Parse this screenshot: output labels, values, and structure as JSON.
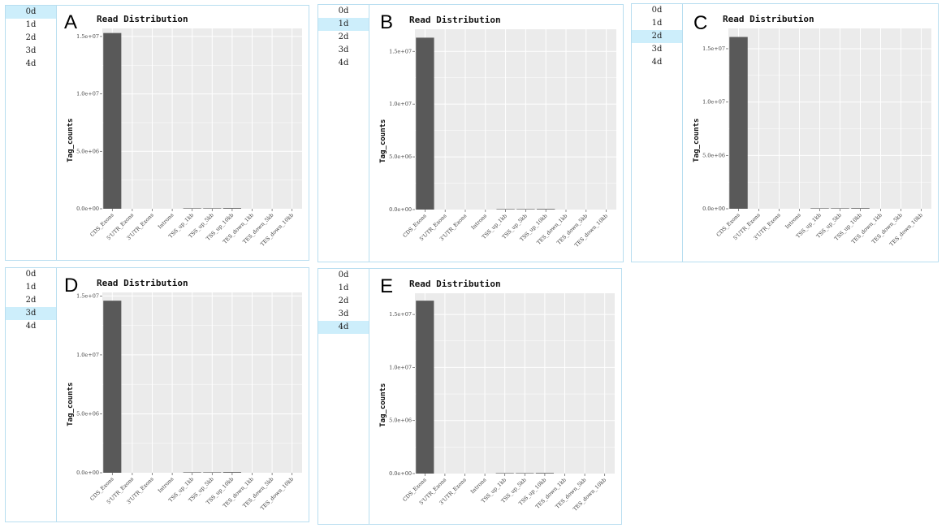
{
  "sidebar_items": [
    "0d",
    "1d",
    "2d",
    "3d",
    "4d"
  ],
  "bar_color": "#595959",
  "grid_bg": "#ebebeb",
  "highlight_color": "#cdeefb",
  "border_color": "#b8def0",
  "panels": [
    {
      "letter": "A",
      "selected_index": 0
    },
    {
      "letter": "B",
      "selected_index": 1
    },
    {
      "letter": "C",
      "selected_index": 2
    },
    {
      "letter": "D",
      "selected_index": 3
    },
    {
      "letter": "E",
      "selected_index": 4
    }
  ],
  "chart_data": [
    {
      "type": "bar",
      "title": "Read Distribution",
      "xlabel": "",
      "ylabel": "Tag_counts",
      "categories": [
        "CDS_Exons",
        "5'UTR_Exons",
        "3'UTR_Exons",
        "Introns",
        "TSS_up_1kb",
        "TSS_up_5kb",
        "TSS_up_10kb",
        "TES_down_1kb",
        "TES_down_5kb",
        "TES_down_10kb"
      ],
      "values": [
        15300000,
        0,
        0,
        0,
        20000,
        40000,
        60000,
        0,
        0,
        0
      ],
      "ylim": [
        0,
        15700000
      ],
      "yticks": [
        0,
        5000000,
        10000000,
        15000000
      ],
      "yticklabels": [
        "0.0e+00",
        "5.0e+06",
        "1.0e+07",
        "1.5e+07"
      ],
      "grid": true
    },
    {
      "type": "bar",
      "title": "Read Distribution",
      "xlabel": "",
      "ylabel": "Tag_counts",
      "categories": [
        "CDS_Exons",
        "5'UTR_Exons",
        "3'UTR_Exons",
        "Introns",
        "TSS_up_1kb",
        "TSS_up_5kb",
        "TSS_up_10kb",
        "TES_down_1kb",
        "TES_down_5kb",
        "TES_down_10kb"
      ],
      "values": [
        16300000,
        0,
        0,
        0,
        20000,
        40000,
        60000,
        0,
        0,
        0
      ],
      "ylim": [
        0,
        17100000
      ],
      "yticks": [
        0,
        5000000,
        10000000,
        15000000
      ],
      "yticklabels": [
        "0.0e+00",
        "5.0e+06",
        "1.0e+07",
        "1.5e+07"
      ],
      "grid": true
    },
    {
      "type": "bar",
      "title": "Read Distribution",
      "xlabel": "",
      "ylabel": "Tag_counts",
      "categories": [
        "CDS_Exons",
        "5'UTR_Exons",
        "3'UTR_Exons",
        "Introns",
        "TSS_up_1kb",
        "TSS_up_5kb",
        "TSS_up_10kb",
        "TES_down_1kb",
        "TES_down_5kb",
        "TES_down_10kb"
      ],
      "values": [
        16100000,
        0,
        0,
        0,
        20000,
        40000,
        60000,
        0,
        0,
        0
      ],
      "ylim": [
        0,
        16900000
      ],
      "yticks": [
        0,
        5000000,
        10000000,
        15000000
      ],
      "yticklabels": [
        "0.0e+00",
        "5.0e+06",
        "1.0e+07",
        "1.5e+07"
      ],
      "grid": true
    },
    {
      "type": "bar",
      "title": "Read Distribution",
      "xlabel": "",
      "ylabel": "Tag_counts",
      "categories": [
        "CDS_Exons",
        "5'UTR_Exons",
        "3'UTR_Exons",
        "Introns",
        "TSS_up_1kb",
        "TSS_up_5kb",
        "TSS_up_10kb",
        "TES_down_1kb",
        "TES_down_5kb",
        "TES_down_10kb"
      ],
      "values": [
        14600000,
        0,
        0,
        0,
        20000,
        40000,
        60000,
        0,
        0,
        0
      ],
      "ylim": [
        0,
        15300000
      ],
      "yticks": [
        0,
        5000000,
        10000000,
        15000000
      ],
      "yticklabels": [
        "0.0e+00",
        "5.0e+06",
        "1.0e+07",
        "1.5e+07"
      ],
      "grid": true
    },
    {
      "type": "bar",
      "title": "Read Distribution",
      "xlabel": "",
      "ylabel": "Tag_counts",
      "categories": [
        "CDS_Exons",
        "5'UTR_Exons",
        "3'UTR_Exons",
        "Introns",
        "TSS_up_1kb",
        "TSS_up_5kb",
        "TSS_up_10kb",
        "TES_down_1kb",
        "TES_down_5kb",
        "TES_down_10kb"
      ],
      "values": [
        16300000,
        0,
        0,
        0,
        20000,
        40000,
        60000,
        0,
        0,
        0
      ],
      "ylim": [
        0,
        17000000
      ],
      "yticks": [
        0,
        5000000,
        10000000,
        15000000
      ],
      "yticklabels": [
        "0.0e+00",
        "5.0e+06",
        "1.0e+07",
        "1.5e+07"
      ],
      "grid": true
    }
  ]
}
